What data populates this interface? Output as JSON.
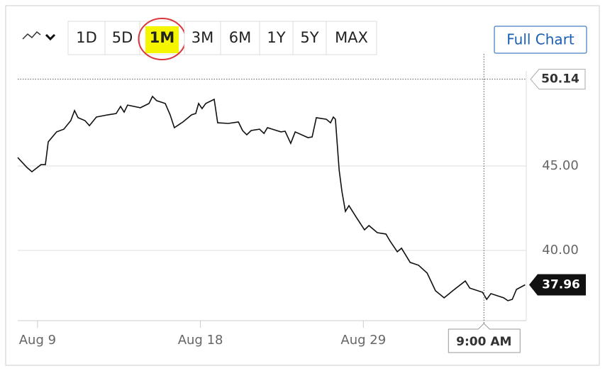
{
  "chart_data": {
    "type": "line",
    "ranges": [
      "1D",
      "5D",
      "1M",
      "3M",
      "6M",
      "1Y",
      "5Y",
      "MAX"
    ],
    "selected_range": "1M",
    "full_chart_button": "Full Chart",
    "color": "#111111",
    "x": [
      -0.85,
      -0.46,
      -0.24,
      0.15,
      0.34,
      0.46,
      0.82,
      1.13,
      1.43,
      1.59,
      1.74,
      2.04,
      2.23,
      2.53,
      3.02,
      3.38,
      3.57,
      3.72,
      3.87,
      4.42,
      4.79,
      4.94,
      5.12,
      5.49,
      5.7,
      5.88,
      6.25,
      6.62,
      6.8,
      6.92,
      7.07,
      7.23,
      7.59,
      7.74,
      8.2,
      8.63,
      8.81,
      8.99,
      9.18,
      9.54,
      9.73,
      9.88,
      10.46,
      10.64,
      10.88,
      11.07,
      11.62,
      11.8,
      11.98,
      12.41,
      12.59,
      12.71,
      12.8,
      12.96,
      13.08,
      13.23,
      13.38,
      13.69,
      14.05,
      14.24,
      14.6,
      14.97,
      15.15,
      15.46,
      15.64,
      16.01,
      16.37,
      16.74,
      17.1,
      17.47,
      17.84,
      18.38,
      18.57,
      19.12,
      19.3,
      19.48,
      20.03,
      20.21,
      20.4,
      20.58,
      20.95
    ],
    "values": [
      45.5,
      44.92,
      44.66,
      45.08,
      45.08,
      46.43,
      47.02,
      47.18,
      47.69,
      48.28,
      47.86,
      47.69,
      47.39,
      47.9,
      48.03,
      48.11,
      48.53,
      48.19,
      48.61,
      48.45,
      48.7,
      49.12,
      48.87,
      48.7,
      48.03,
      47.27,
      47.61,
      48.03,
      48.11,
      48.7,
      48.4,
      48.7,
      48.95,
      47.56,
      47.52,
      47.61,
      47.1,
      46.85,
      47.1,
      47.18,
      46.93,
      47.27,
      47.02,
      47.06,
      46.34,
      47.02,
      46.68,
      46.72,
      47.86,
      47.77,
      47.56,
      47.9,
      47.77,
      44.75,
      43.49,
      42.31,
      42.65,
      41.98,
      41.22,
      41.47,
      41.05,
      40.97,
      40.55,
      39.92,
      40.13,
      39.29,
      39.12,
      38.66,
      37.61,
      37.19,
      37.61,
      38.19,
      37.77,
      37.52,
      37.1,
      37.44,
      37.19,
      37.02,
      37.1,
      37.69,
      37.96
    ],
    "xlim": [
      -0.85,
      21.0
    ],
    "ylim": [
      35.84,
      50.63
    ],
    "xticks": [
      {
        "value": 0,
        "label": "Aug 9"
      },
      {
        "value": 7,
        "label": "Aug 18"
      },
      {
        "value": 14,
        "label": "Aug 29"
      }
    ],
    "yticks": [
      {
        "value": 40,
        "label": "40.00"
      },
      {
        "value": 45,
        "label": "45.00"
      }
    ],
    "grid": true,
    "reference_price": 50.14,
    "last_price": 37.96,
    "crosshair": {
      "x": 19.18,
      "label": "9:00 AM"
    }
  }
}
